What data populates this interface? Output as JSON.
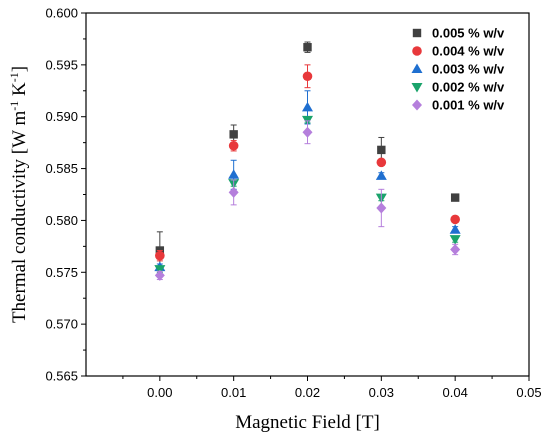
{
  "chart_data": {
    "type": "scatter",
    "xlabel": "Magnetic Field [T]",
    "ylabel_parts": [
      "Thermal conductivity [W m",
      "-1",
      " K",
      "-1",
      "]"
    ],
    "xlim": [
      -0.01,
      0.05
    ],
    "ylim": [
      0.565,
      0.6
    ],
    "x_ticks": [
      "0.00",
      "0.01",
      "0.02",
      "0.03",
      "0.04",
      "0.05"
    ],
    "y_ticks": [
      "0.565",
      "0.570",
      "0.575",
      "0.580",
      "0.585",
      "0.590",
      "0.595",
      "0.600"
    ],
    "x": [
      0.0,
      0.01,
      0.02,
      0.03,
      0.04
    ],
    "legend_position": "top-right",
    "series": [
      {
        "name": "0.005 % w/v",
        "marker": "square",
        "color": "#404040",
        "values": [
          0.5771,
          0.5883,
          0.5967,
          0.5868,
          0.5822
        ],
        "errors": [
          0.0018,
          0.0009,
          0.0005,
          0.0012,
          0.0003
        ]
      },
      {
        "name": "0.004 % w/v",
        "marker": "circle",
        "color": "#e8383b",
        "values": [
          0.5766,
          0.5872,
          0.5939,
          0.5856,
          0.5801
        ],
        "errors": [
          0.0005,
          0.0005,
          0.0011,
          0.0003,
          0.0003
        ]
      },
      {
        "name": "0.003 % w/v",
        "marker": "triangle-up",
        "color": "#1f6fd0",
        "values": [
          0.5755,
          0.5844,
          0.5909,
          0.5843,
          0.5791
        ],
        "errors": [
          0.0003,
          0.0014,
          0.0016,
          0.0003,
          0.0003
        ]
      },
      {
        "name": "0.002 % w/v",
        "marker": "triangle-down",
        "color": "#1aa36b",
        "values": [
          0.5753,
          0.5836,
          0.5897,
          0.5822,
          0.5782
        ],
        "errors": [
          0.0003,
          0.0003,
          0.0003,
          0.0003,
          0.0003
        ]
      },
      {
        "name": "0.001 % w/v",
        "marker": "diamond",
        "color": "#b57fdc",
        "values": [
          0.5747,
          0.5827,
          0.5885,
          0.5812,
          0.5772
        ],
        "errors": [
          0.0004,
          0.0012,
          0.0011,
          0.0018,
          0.0005
        ]
      }
    ]
  }
}
